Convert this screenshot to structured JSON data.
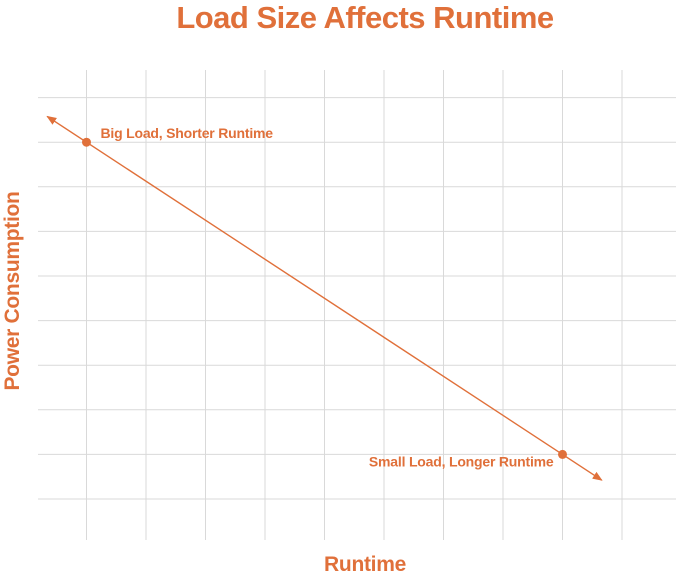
{
  "chart_data": {
    "type": "line",
    "title": "Load Size Affects Runtime",
    "xlabel": "Runtime",
    "ylabel": "Power Consumption",
    "grid": true,
    "axis_ticks_labeled": false,
    "series": [
      {
        "color": "#e0703a",
        "line_style": "double-arrow",
        "points": [
          {
            "x": 1,
            "y": 9,
            "label": "Big Load, Shorter Runtime"
          },
          {
            "x": 9,
            "y": 2,
            "label": "Small Load, Longer Runtime"
          }
        ]
      }
    ],
    "xlim": [
      0,
      10
    ],
    "ylim": [
      1,
      10
    ]
  },
  "colors": {
    "accent": "#e0703a",
    "grid": "#d9d9d9",
    "background": "#ffffff"
  }
}
